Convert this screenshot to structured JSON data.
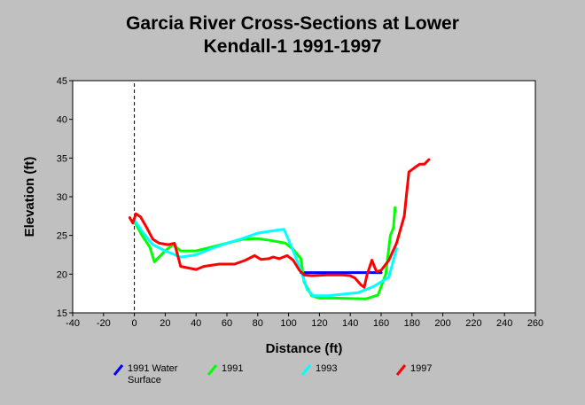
{
  "chart_data": {
    "type": "line",
    "title_lines": [
      "Garcia River Cross-Sections at Lower",
      "Kendall-1 1991-1997"
    ],
    "xlabel": "Distance (ft)",
    "ylabel": "Elevation (ft)",
    "xlim": [
      -40,
      260
    ],
    "ylim": [
      15,
      45
    ],
    "x_ticks": [
      -40,
      -20,
      0,
      20,
      40,
      60,
      80,
      100,
      120,
      140,
      160,
      180,
      200,
      220,
      240,
      260
    ],
    "y_ticks": [
      15,
      20,
      25,
      30,
      35,
      40,
      45
    ],
    "grid": false,
    "reference_line_x": 0,
    "legend_position": "bottom",
    "series": [
      {
        "name": "1991 Water Surface",
        "color": "#0000ff",
        "points": [
          [
            108,
            20.2
          ],
          [
            160,
            20.2
          ]
        ]
      },
      {
        "name": "1991",
        "color": "#00ff00",
        "points": [
          [
            0,
            26.8
          ],
          [
            5,
            25.0
          ],
          [
            10,
            23.5
          ],
          [
            13,
            21.6
          ],
          [
            16,
            22.2
          ],
          [
            20,
            23.0
          ],
          [
            25,
            23.8
          ],
          [
            30,
            23.0
          ],
          [
            40,
            23.0
          ],
          [
            50,
            23.5
          ],
          [
            60,
            24.0
          ],
          [
            70,
            24.5
          ],
          [
            80,
            24.6
          ],
          [
            90,
            24.3
          ],
          [
            98,
            24.0
          ],
          [
            103,
            23.2
          ],
          [
            108,
            22.0
          ],
          [
            110,
            19.0
          ],
          [
            115,
            17.2
          ],
          [
            120,
            16.9
          ],
          [
            130,
            16.9
          ],
          [
            150,
            16.8
          ],
          [
            158,
            17.3
          ],
          [
            163,
            20.0
          ],
          [
            166,
            25.0
          ],
          [
            168,
            26.0
          ],
          [
            169,
            28.6
          ]
        ]
      },
      {
        "name": "1993",
        "color": "#00ffff",
        "points": [
          [
            0,
            27.0
          ],
          [
            5,
            25.5
          ],
          [
            12,
            23.8
          ],
          [
            20,
            23.0
          ],
          [
            30,
            22.2
          ],
          [
            40,
            22.5
          ],
          [
            50,
            23.3
          ],
          [
            60,
            24.0
          ],
          [
            70,
            24.6
          ],
          [
            80,
            25.3
          ],
          [
            90,
            25.6
          ],
          [
            97,
            25.8
          ],
          [
            103,
            23.0
          ],
          [
            108,
            20.5
          ],
          [
            112,
            18.0
          ],
          [
            116,
            17.2
          ],
          [
            125,
            17.2
          ],
          [
            135,
            17.4
          ],
          [
            145,
            17.6
          ],
          [
            155,
            18.4
          ],
          [
            165,
            19.6
          ],
          [
            170,
            23.3
          ]
        ]
      },
      {
        "name": "1997",
        "color": "#ff0000",
        "points": [
          [
            -3,
            27.3
          ],
          [
            -1,
            26.6
          ],
          [
            1,
            27.8
          ],
          [
            4,
            27.4
          ],
          [
            8,
            26.0
          ],
          [
            12,
            24.5
          ],
          [
            16,
            24.0
          ],
          [
            22,
            23.8
          ],
          [
            26,
            24.0
          ],
          [
            30,
            21.0
          ],
          [
            40,
            20.6
          ],
          [
            45,
            21.0
          ],
          [
            55,
            21.3
          ],
          [
            65,
            21.3
          ],
          [
            72,
            21.8
          ],
          [
            78,
            22.4
          ],
          [
            82,
            21.9
          ],
          [
            87,
            22.0
          ],
          [
            90,
            22.2
          ],
          [
            94,
            22.0
          ],
          [
            99,
            22.4
          ],
          [
            103,
            21.8
          ],
          [
            107,
            20.5
          ],
          [
            110,
            19.9
          ],
          [
            115,
            19.8
          ],
          [
            125,
            19.9
          ],
          [
            135,
            19.9
          ],
          [
            140,
            19.8
          ],
          [
            143,
            19.5
          ],
          [
            147,
            18.6
          ],
          [
            149,
            18.3
          ],
          [
            151,
            20.0
          ],
          [
            154,
            21.8
          ],
          [
            157,
            20.3
          ],
          [
            160,
            20.5
          ],
          [
            165,
            21.8
          ],
          [
            170,
            24.0
          ],
          [
            175,
            27.5
          ],
          [
            178,
            33.2
          ],
          [
            182,
            33.8
          ],
          [
            185,
            34.2
          ],
          [
            188,
            34.2
          ],
          [
            191,
            34.8
          ]
        ]
      }
    ]
  }
}
